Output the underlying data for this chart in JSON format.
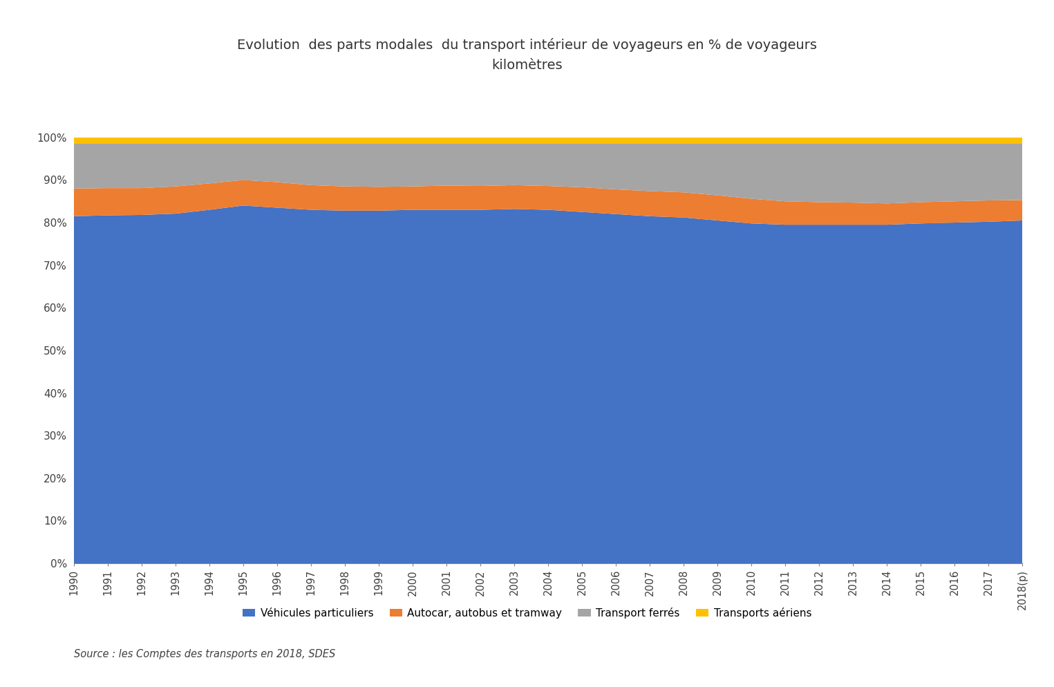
{
  "years": [
    "1990",
    "1991",
    "1992",
    "1993",
    "1994",
    "1995",
    "1996",
    "1997",
    "1998",
    "1999",
    "2000",
    "2001",
    "2002",
    "2003",
    "2004",
    "2005",
    "2006",
    "2007",
    "2008",
    "2009",
    "2010",
    "2011",
    "2012",
    "2013",
    "2014",
    "2015",
    "2016",
    "2017",
    "2018(p)"
  ],
  "vehicules_particuliers": [
    81.5,
    81.7,
    81.8,
    82.1,
    83.0,
    84.0,
    83.5,
    83.0,
    82.8,
    82.8,
    83.0,
    83.0,
    83.0,
    83.2,
    83.0,
    82.5,
    82.0,
    81.5,
    81.2,
    80.5,
    79.8,
    79.5,
    79.5,
    79.5,
    79.5,
    79.8,
    80.0,
    80.2,
    80.5
  ],
  "autocar_autobus": [
    6.5,
    6.4,
    6.3,
    6.4,
    6.2,
    6.0,
    6.0,
    5.8,
    5.7,
    5.6,
    5.5,
    5.7,
    5.6,
    5.6,
    5.6,
    5.8,
    5.8,
    5.9,
    5.9,
    5.9,
    5.8,
    5.5,
    5.3,
    5.2,
    5.0,
    5.0,
    5.0,
    5.0,
    4.8
  ],
  "transport_ferres": [
    10.5,
    10.4,
    10.4,
    10.0,
    9.3,
    8.5,
    9.0,
    9.7,
    10.0,
    10.1,
    10.0,
    9.8,
    9.9,
    9.7,
    9.9,
    10.2,
    10.7,
    11.1,
    11.4,
    12.1,
    12.9,
    13.5,
    13.7,
    13.8,
    14.0,
    13.7,
    13.5,
    13.3,
    13.2
  ],
  "transports_aeriens": [
    1.5,
    1.5,
    1.5,
    1.5,
    1.5,
    1.5,
    1.5,
    1.5,
    1.5,
    1.5,
    1.5,
    1.5,
    1.5,
    1.5,
    1.5,
    1.5,
    1.5,
    1.5,
    1.5,
    1.5,
    1.5,
    1.5,
    1.5,
    1.5,
    1.5,
    1.5,
    1.5,
    1.5,
    1.5
  ],
  "colors": [
    "#4472C4",
    "#ED7D31",
    "#A5A5A5",
    "#FFC000"
  ],
  "labels": [
    "Véhicules particuliers",
    "Autocar, autobus et tramway",
    "Transport ferrés",
    "Transports aériens"
  ],
  "title_line1": "Evolution  des parts modales  du transport intérieur de voyageurs en % de voyageurs",
  "title_line2": "kilomètres",
  "source": "Source : les Comptes des transports en 2018, SDES",
  "yticks": [
    0,
    10,
    20,
    30,
    40,
    50,
    60,
    70,
    80,
    90,
    100
  ],
  "ylabels": [
    "0%",
    "10%",
    "20%",
    "30%",
    "40%",
    "50%",
    "60%",
    "70%",
    "80%",
    "90%",
    "100%"
  ]
}
